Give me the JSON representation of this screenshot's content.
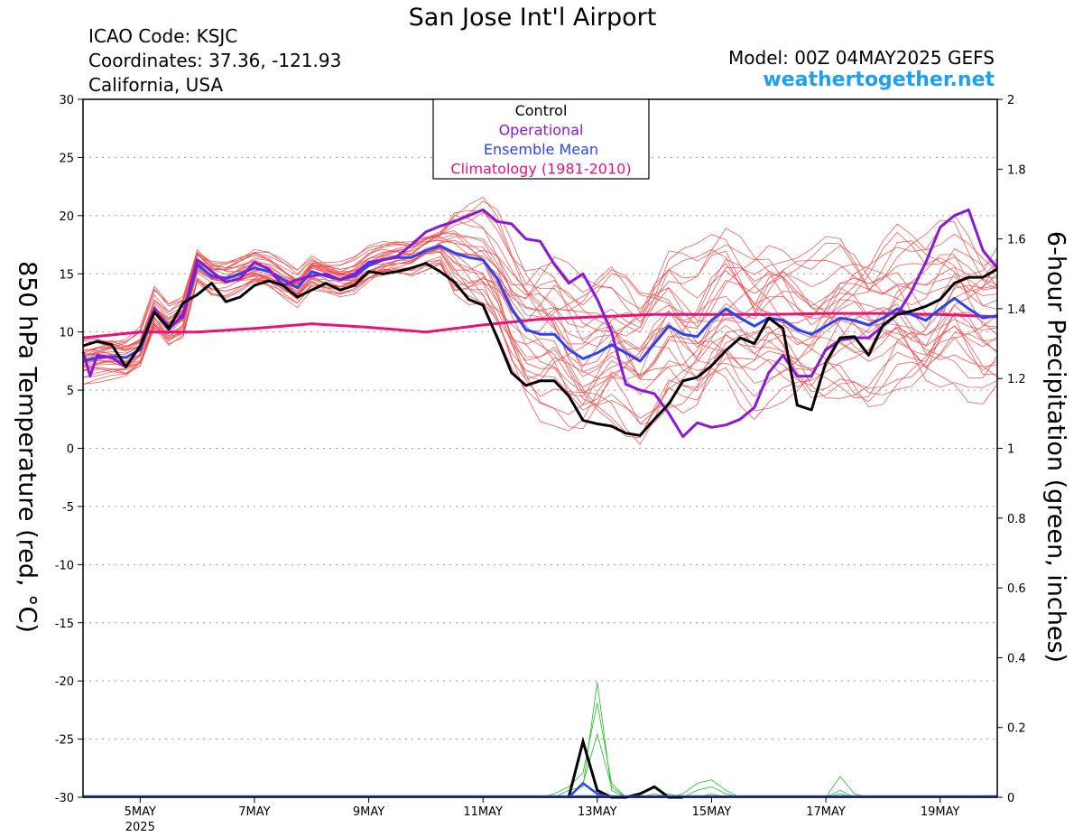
{
  "header": {
    "title": "San Jose Int'l Airport",
    "icao": "ICAO Code: KSJC",
    "coords": "Coordinates: 37.36, -121.93",
    "region": "California, USA",
    "model": "Model: 00Z 04MAY2025 GEFS",
    "site": "weathertogether.net"
  },
  "colors": {
    "members": "#f04a4a",
    "control": "#000000",
    "operational": "#8a18d6",
    "mean": "#2a44f0",
    "climatology": "#e8127a",
    "precip": "#22bb22",
    "site": "#1ea0f0"
  },
  "chart_data": {
    "type": "line",
    "title": "San Jose Int'l Airport",
    "ylabel": "850 hPa Temperature (red, °C)",
    "y2label": "6-hour Precipitation (green, inches)",
    "ylim": [
      -30,
      30
    ],
    "y2lim": [
      0,
      2
    ],
    "xlim": [
      4.0,
      20.0
    ],
    "x_unit": "day of May 2025",
    "yticks": [
      30,
      25,
      20,
      15,
      10,
      5,
      0,
      -5,
      -10,
      -15,
      -20,
      -25,
      -30
    ],
    "y2ticks": [
      "2",
      "1.8",
      "1.6",
      "1.4",
      "1.2",
      "1",
      "0.8",
      "0.6",
      "0.4",
      "0.2",
      "0"
    ],
    "xticks": [
      {
        "x": 5,
        "label": "5MAY",
        "sub": "2025"
      },
      {
        "x": 7,
        "label": "7MAY"
      },
      {
        "x": 9,
        "label": "9MAY"
      },
      {
        "x": 11,
        "label": "11MAY"
      },
      {
        "x": 13,
        "label": "13MAY"
      },
      {
        "x": 15,
        "label": "15MAY"
      },
      {
        "x": 17,
        "label": "17MAY"
      },
      {
        "x": 19,
        "label": "19MAY"
      }
    ],
    "legend": {
      "placement": "top-center",
      "entries": [
        "Control",
        "Operational",
        "Ensemble Mean",
        "Climatology (1981-2010)"
      ]
    },
    "grid": "dotted-horizontal",
    "series": [
      {
        "name": "Control",
        "x": [
          4.0,
          4.25,
          4.5,
          4.75,
          5.0,
          5.25,
          5.5,
          5.75,
          6.0,
          6.25,
          6.5,
          6.75,
          7.0,
          7.25,
          7.5,
          7.75,
          8.0,
          8.25,
          8.5,
          8.75,
          9.0,
          9.25,
          9.5,
          9.75,
          10.0,
          10.25,
          10.5,
          10.75,
          11.0,
          11.25,
          11.5,
          11.75,
          12.0,
          12.25,
          12.5,
          12.75,
          13.0,
          13.25,
          13.5,
          13.75,
          14.0,
          14.25,
          14.5,
          14.75,
          15.0,
          15.25,
          15.5,
          15.75,
          16.0,
          16.25,
          16.5,
          16.75,
          17.0,
          17.25,
          17.5,
          17.75,
          18.0,
          18.25,
          18.5,
          18.75,
          19.0,
          19.25,
          19.5,
          19.75,
          20.0
        ],
        "values": [
          8.8,
          9.2,
          8.9,
          7.0,
          8.8,
          11.7,
          10.3,
          12.5,
          13.2,
          14.2,
          12.6,
          13.0,
          14.0,
          14.4,
          14.0,
          13.0,
          13.6,
          14.2,
          13.6,
          14.0,
          15.2,
          15.0,
          15.2,
          15.5,
          15.9,
          15.2,
          14.3,
          12.8,
          12.3,
          9.5,
          6.5,
          5.4,
          5.8,
          5.8,
          4.5,
          2.4,
          2.1,
          1.9,
          1.3,
          1.1,
          2.5,
          3.8,
          5.8,
          6.1,
          7.1,
          8.4,
          9.5,
          9.0,
          11.2,
          10.3,
          3.7,
          3.3,
          7.4,
          9.5,
          9.6,
          8.0,
          10.6,
          11.5,
          11.8,
          12.2,
          12.8,
          14.2,
          14.7,
          14.7,
          15.4
        ]
      },
      {
        "name": "Operational",
        "x": [
          4.0,
          4.125,
          4.25,
          4.5,
          4.75,
          5.0,
          5.25,
          5.5,
          5.75,
          6.0,
          6.25,
          6.5,
          6.75,
          7.0,
          7.25,
          7.5,
          7.75,
          8.0,
          8.25,
          8.5,
          8.75,
          9.0,
          9.25,
          9.5,
          9.75,
          10.0,
          10.25,
          10.5,
          10.75,
          11.0,
          11.25,
          11.5,
          11.75,
          12.0,
          12.25,
          12.5,
          12.75,
          13.0,
          13.25,
          13.5,
          13.75,
          14.0,
          14.25,
          14.5,
          14.75,
          15.0,
          15.25,
          15.5,
          15.75,
          16.0,
          16.25,
          16.5,
          16.75,
          17.0,
          17.25,
          17.5,
          17.75,
          18.0,
          18.25,
          18.5,
          18.75,
          19.0,
          19.25,
          19.5,
          19.75,
          20.0
        ],
        "values": [
          8.3,
          6.2,
          8.0,
          7.8,
          7.0,
          8.8,
          12.0,
          10.2,
          11.5,
          16.2,
          15.2,
          14.3,
          14.6,
          16.0,
          15.4,
          14.0,
          14.5,
          14.8,
          15.0,
          14.5,
          15.0,
          16.0,
          16.2,
          16.5,
          17.5,
          18.6,
          19.1,
          19.5,
          20.0,
          20.5,
          19.5,
          19.3,
          18.0,
          17.8,
          15.8,
          14.2,
          15.0,
          12.8,
          10.0,
          5.5,
          5.0,
          4.7,
          3.0,
          1.0,
          2.2,
          1.8,
          2.0,
          2.5,
          3.5,
          6.5,
          8.0,
          6.2,
          6.2,
          8.5,
          9.3,
          9.5,
          9.5,
          10.5,
          11.5,
          13.5,
          16.0,
          19.0,
          20.0,
          20.5,
          17.0,
          15.5
        ]
      },
      {
        "name": "Ensemble Mean",
        "x": [
          4.0,
          4.25,
          4.5,
          4.75,
          5.0,
          5.25,
          5.5,
          5.75,
          6.0,
          6.25,
          6.5,
          6.75,
          7.0,
          7.25,
          7.5,
          7.75,
          8.0,
          8.25,
          8.5,
          8.75,
          9.0,
          9.25,
          9.5,
          9.75,
          10.0,
          10.25,
          10.5,
          10.75,
          11.0,
          11.25,
          11.5,
          11.75,
          12.0,
          12.25,
          12.5,
          12.75,
          13.0,
          13.25,
          13.5,
          13.75,
          14.0,
          14.25,
          14.5,
          14.75,
          15.0,
          15.25,
          15.5,
          15.75,
          16.0,
          16.25,
          16.5,
          16.75,
          17.0,
          17.25,
          17.5,
          17.75,
          18.0,
          18.25,
          18.5,
          18.75,
          19.0,
          19.25,
          19.5,
          19.75,
          20.0
        ],
        "values": [
          7.5,
          7.8,
          7.9,
          7.8,
          8.5,
          11.8,
          10.5,
          11.3,
          15.8,
          14.8,
          14.6,
          15.0,
          15.5,
          15.2,
          14.5,
          13.8,
          15.2,
          14.8,
          14.5,
          14.8,
          15.7,
          16.2,
          16.4,
          16.4,
          17.0,
          17.4,
          16.8,
          16.4,
          16.2,
          14.6,
          12.0,
          10.2,
          9.8,
          9.8,
          8.5,
          7.7,
          8.2,
          8.9,
          8.2,
          7.5,
          9.0,
          10.5,
          9.8,
          9.6,
          11.0,
          12.0,
          11.2,
          10.5,
          11.2,
          11.0,
          10.2,
          9.8,
          10.5,
          11.2,
          11.0,
          10.6,
          11.2,
          12.0,
          11.5,
          11.0,
          12.0,
          12.9,
          12.0,
          11.2,
          11.4
        ]
      },
      {
        "name": "Climatology (1981-2010)",
        "x": [
          4.0,
          5.0,
          6.0,
          7.0,
          8.0,
          9.0,
          10.0,
          11.0,
          12.0,
          13.0,
          14.0,
          15.0,
          16.0,
          17.0,
          18.0,
          19.0,
          20.0
        ],
        "values": [
          9.5,
          10.0,
          10.0,
          10.3,
          10.7,
          10.4,
          10.0,
          10.6,
          11.1,
          11.3,
          11.5,
          11.5,
          11.5,
          11.6,
          11.6,
          11.5,
          11.3
        ]
      },
      {
        "name": "Precipitation members",
        "axis": "y2",
        "x_start": 4.0,
        "x_step": 0.25,
        "members": [
          [
            0,
            0,
            0,
            0,
            0,
            0,
            0,
            0,
            0,
            0,
            0,
            0,
            0,
            0,
            0,
            0,
            0,
            0,
            0,
            0,
            0,
            0,
            0,
            0,
            0,
            0,
            0,
            0,
            0,
            0,
            0,
            0,
            0,
            0,
            0.02,
            0.03,
            0.33,
            0.02,
            0,
            0,
            0,
            0,
            0.01,
            0.04,
            0.05,
            0.02,
            0,
            0,
            0,
            0,
            0,
            0,
            0,
            0.06,
            0.01,
            0,
            0,
            0,
            0,
            0,
            0,
            0,
            0,
            0.005,
            0.005
          ],
          [
            0,
            0,
            0,
            0,
            0,
            0,
            0,
            0,
            0,
            0,
            0,
            0,
            0,
            0,
            0,
            0,
            0,
            0,
            0,
            0,
            0,
            0,
            0,
            0,
            0,
            0,
            0,
            0,
            0,
            0,
            0,
            0,
            0,
            0.01,
            0.03,
            0.07,
            0.27,
            0.04,
            0,
            0,
            0.01,
            0,
            0,
            0.02,
            0.03,
            0.01,
            0,
            0,
            0,
            0,
            0,
            0,
            0,
            0.02,
            0,
            0,
            0,
            0,
            0,
            0,
            0,
            0,
            0,
            0,
            0
          ],
          [
            0,
            0,
            0,
            0,
            0,
            0,
            0,
            0,
            0,
            0,
            0,
            0,
            0,
            0,
            0,
            0,
            0,
            0,
            0,
            0,
            0,
            0,
            0,
            0,
            0,
            0,
            0,
            0,
            0,
            0,
            0,
            0,
            0,
            0,
            0,
            0.04,
            0.18,
            0.03,
            0,
            0,
            0,
            0.01,
            0,
            0,
            0.01,
            0,
            0,
            0,
            0,
            0,
            0,
            0,
            0,
            0.01,
            0,
            0,
            0,
            0,
            0,
            0,
            0,
            0,
            0,
            0,
            0
          ]
        ]
      },
      {
        "name": "Precipitation control",
        "axis": "y2",
        "x": [
          12.5,
          12.75,
          13.0,
          13.25,
          13.5,
          13.75,
          14.0,
          14.25,
          14.5
        ],
        "values": [
          0,
          0.16,
          0.02,
          0,
          0,
          0.01,
          0.03,
          0,
          0
        ]
      },
      {
        "name": "Precipitation mean",
        "axis": "y2",
        "x": [
          12.5,
          12.75,
          13.0,
          13.25
        ],
        "values": [
          0,
          0.04,
          0.01,
          0
        ]
      }
    ],
    "member_count": 30
  }
}
